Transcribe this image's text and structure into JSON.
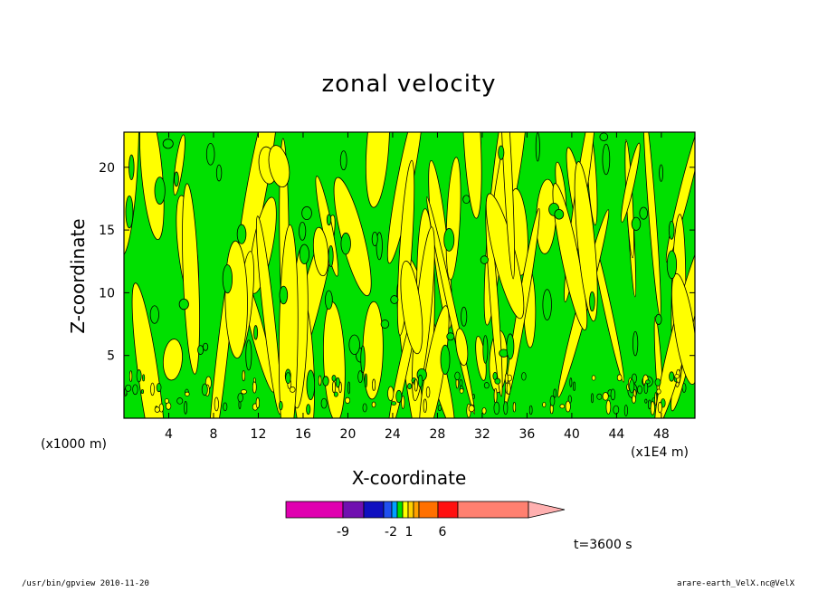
{
  "chart_data": {
    "type": "heatmap",
    "title": "zonal velocity",
    "xlabel": "X-coordinate",
    "ylabel": "Z-coordinate",
    "x_unit_left": "(x1000 m)",
    "x_unit_right": "(x1E4 m)",
    "x_ticks": [
      4,
      8,
      12,
      16,
      20,
      24,
      28,
      32,
      36,
      40,
      44,
      48
    ],
    "y_ticks": [
      5,
      10,
      15,
      20
    ],
    "xlim": [
      0,
      51
    ],
    "ylim": [
      0,
      22.8
    ],
    "fill_colors": {
      "positive": "#ffff00",
      "negative": "#00e000",
      "contour": "#000000"
    },
    "colorbar": {
      "segments": [
        {
          "color": "#e000b0",
          "range": "< -9"
        },
        {
          "color": "#7010b0",
          "range": "-9"
        },
        {
          "color": "#1010c0",
          "range": "-6"
        },
        {
          "color": "#2050f0",
          "range": "-3"
        },
        {
          "color": "#00a0ff",
          "range": "-2"
        },
        {
          "color": "#00e000",
          "range": "-1"
        },
        {
          "color": "#ffff00",
          "range": "0"
        },
        {
          "color": "#ffd000",
          "range": "1"
        },
        {
          "color": "#ffa000",
          "range": "2"
        },
        {
          "color": "#ff7000",
          "range": "3"
        },
        {
          "color": "#ff1010",
          "range": "6"
        },
        {
          "color": "#ff8070",
          "range": "> 9"
        }
      ],
      "tick_labels": [
        "-9",
        "-2",
        "1",
        "6"
      ],
      "arrow_color": "#ffb0b0"
    },
    "time": "t=3600 s"
  },
  "footer": {
    "left": "/usr/bin/gpview   2010-11-20",
    "right": "arare-earth_VelX.nc@VelX"
  }
}
